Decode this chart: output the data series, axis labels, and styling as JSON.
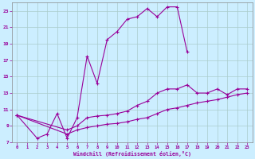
{
  "bg_color": "#cceeff",
  "line_color": "#990099",
  "grid_color": "#aacccc",
  "xlabel": "Windchill (Refroidissement éolien,°C)",
  "xlabel_color": "#990099",
  "tick_color": "#990099",
  "xlim": [
    -0.5,
    23.5
  ],
  "ylim": [
    7,
    24
  ],
  "xticks": [
    0,
    1,
    2,
    3,
    4,
    5,
    6,
    7,
    8,
    9,
    10,
    11,
    12,
    13,
    14,
    15,
    16,
    17,
    18,
    19,
    20,
    21,
    22,
    23
  ],
  "yticks": [
    7,
    9,
    11,
    13,
    15,
    17,
    19,
    21,
    23
  ],
  "series": [
    {
      "x": [
        0,
        2,
        3,
        4,
        5,
        6,
        7,
        8,
        9,
        10,
        11,
        12,
        13,
        14,
        15,
        16,
        17
      ],
      "y": [
        10.3,
        7.5,
        8.0,
        10.5,
        7.5,
        10.0,
        17.5,
        14.2,
        19.5,
        20.5,
        22.0,
        22.3,
        23.3,
        22.3,
        23.5,
        23.5,
        18.0
      ]
    },
    {
      "x": [
        0,
        5,
        6,
        7,
        8,
        9,
        10,
        11,
        12,
        13,
        14,
        15,
        16,
        17,
        18,
        19,
        20,
        21,
        22,
        23
      ],
      "y": [
        10.3,
        8.5,
        9.0,
        10.0,
        10.2,
        10.3,
        10.5,
        10.8,
        11.5,
        12.0,
        13.0,
        13.5,
        13.5,
        14.0,
        13.0,
        13.0,
        13.5,
        12.8,
        13.5,
        13.5
      ]
    },
    {
      "x": [
        0,
        5,
        6,
        7,
        8,
        9,
        10,
        11,
        12,
        13,
        14,
        15,
        16,
        17,
        18,
        19,
        20,
        21,
        22,
        23
      ],
      "y": [
        10.3,
        8.0,
        8.5,
        8.8,
        9.0,
        9.2,
        9.3,
        9.5,
        9.8,
        10.0,
        10.5,
        11.0,
        11.2,
        11.5,
        11.8,
        12.0,
        12.2,
        12.5,
        12.8,
        13.0
      ]
    }
  ]
}
